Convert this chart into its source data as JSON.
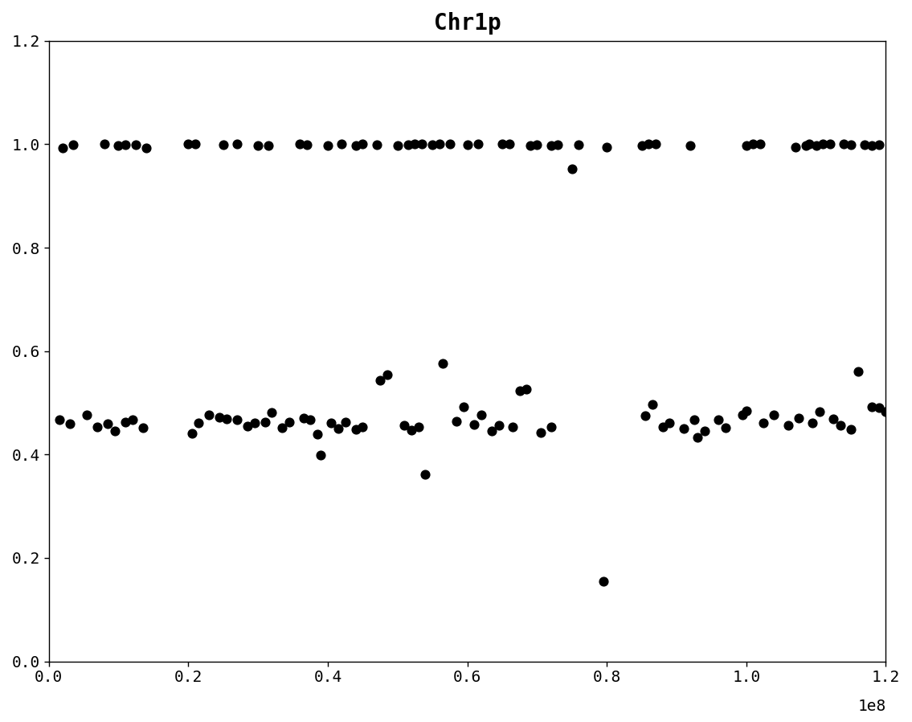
{
  "title": "Chr1p",
  "xlim": [
    0,
    120000000.0
  ],
  "ylim": [
    0.0,
    1.2
  ],
  "yticks": [
    0.0,
    0.2,
    0.4,
    0.6,
    0.8,
    1.0,
    1.2
  ],
  "xtick_vals": [
    0,
    20000000.0,
    40000000.0,
    60000000.0,
    80000000.0,
    100000000.0,
    120000000.0
  ],
  "xtick_labels": [
    "0.0",
    "0.2",
    "0.4",
    "0.6",
    "0.8",
    "1.0",
    "1.2"
  ],
  "xlabel_sci": "1e8",
  "marker_color": "#000000",
  "marker_size": 60,
  "background_color": "#ffffff",
  "upper_cluster": [
    [
      2000000,
      0.993
    ],
    [
      3500000,
      0.999
    ],
    [
      8000000,
      1.0
    ],
    [
      10000000,
      0.997
    ],
    [
      11000000,
      0.999
    ],
    [
      12500000,
      0.999
    ],
    [
      14000000,
      0.993
    ],
    [
      20000000,
      1.001
    ],
    [
      21000000,
      1.0
    ],
    [
      25000000,
      0.999
    ],
    [
      27000000,
      1.0
    ],
    [
      30000000,
      0.998
    ],
    [
      31500000,
      0.998
    ],
    [
      36000000,
      1.001
    ],
    [
      37000000,
      0.999
    ],
    [
      40000000,
      0.997
    ],
    [
      42000000,
      1.0
    ],
    [
      44000000,
      0.998
    ],
    [
      45000000,
      1.0
    ],
    [
      47000000,
      0.999
    ],
    [
      50000000,
      0.998
    ],
    [
      51500000,
      0.999
    ],
    [
      52500000,
      1.0
    ],
    [
      53500000,
      1.0
    ],
    [
      55000000,
      0.999
    ],
    [
      56000000,
      1.001
    ],
    [
      57500000,
      1.0
    ],
    [
      60000000,
      0.999
    ],
    [
      61500000,
      1.001
    ],
    [
      65000000,
      1.001
    ],
    [
      66000000,
      1.001
    ],
    [
      69000000,
      0.998
    ],
    [
      70000000,
      0.999
    ],
    [
      72000000,
      0.997
    ],
    [
      73000000,
      0.999
    ],
    [
      75000000,
      0.952
    ],
    [
      76000000,
      0.999
    ],
    [
      80000000,
      0.994
    ],
    [
      85000000,
      0.997
    ],
    [
      86000000,
      1.0
    ],
    [
      87000000,
      1.001
    ],
    [
      92000000,
      0.997
    ],
    [
      100000000,
      0.998
    ],
    [
      101000000,
      1.001
    ],
    [
      102000000,
      1.001
    ],
    [
      107000000,
      0.994
    ],
    [
      108500000,
      0.998
    ],
    [
      109000000,
      1.0
    ],
    [
      110000000,
      0.998
    ],
    [
      111000000,
      1.001
    ],
    [
      112000000,
      1.0
    ],
    [
      114000000,
      1.0
    ],
    [
      115000000,
      0.999
    ],
    [
      117000000,
      0.999
    ],
    [
      118000000,
      0.998
    ],
    [
      119000000,
      0.999
    ]
  ],
  "lower_cluster": [
    [
      1500000,
      0.468
    ],
    [
      3000000,
      0.459
    ],
    [
      5500000,
      0.477
    ],
    [
      7000000,
      0.453
    ],
    [
      8500000,
      0.46
    ],
    [
      9500000,
      0.446
    ],
    [
      11000000,
      0.462
    ],
    [
      12000000,
      0.467
    ],
    [
      13500000,
      0.452
    ],
    [
      20500000,
      0.441
    ],
    [
      21500000,
      0.461
    ],
    [
      23000000,
      0.476
    ],
    [
      24500000,
      0.472
    ],
    [
      25500000,
      0.469
    ],
    [
      27000000,
      0.468
    ],
    [
      28500000,
      0.455
    ],
    [
      29500000,
      0.461
    ],
    [
      31000000,
      0.462
    ],
    [
      32000000,
      0.481
    ],
    [
      33500000,
      0.452
    ],
    [
      34500000,
      0.462
    ],
    [
      36500000,
      0.471
    ],
    [
      37500000,
      0.467
    ],
    [
      38500000,
      0.44
    ],
    [
      39000000,
      0.399
    ],
    [
      40500000,
      0.461
    ],
    [
      41500000,
      0.451
    ],
    [
      42500000,
      0.463
    ],
    [
      44000000,
      0.448
    ],
    [
      45000000,
      0.454
    ],
    [
      47500000,
      0.543
    ],
    [
      48500000,
      0.554
    ],
    [
      51000000,
      0.456
    ],
    [
      52000000,
      0.447
    ],
    [
      53000000,
      0.453
    ],
    [
      54000000,
      0.362
    ],
    [
      56500000,
      0.576
    ],
    [
      58500000,
      0.464
    ],
    [
      59500000,
      0.492
    ],
    [
      61000000,
      0.458
    ],
    [
      62000000,
      0.476
    ],
    [
      63500000,
      0.446
    ],
    [
      64500000,
      0.456
    ],
    [
      66500000,
      0.454
    ],
    [
      67500000,
      0.524
    ],
    [
      68500000,
      0.527
    ],
    [
      70500000,
      0.442
    ],
    [
      72000000,
      0.453
    ],
    [
      79500000,
      0.155
    ],
    [
      85500000,
      0.475
    ],
    [
      86500000,
      0.497
    ],
    [
      88000000,
      0.454
    ],
    [
      89000000,
      0.461
    ],
    [
      91000000,
      0.451
    ],
    [
      92500000,
      0.468
    ],
    [
      93000000,
      0.433
    ],
    [
      94000000,
      0.445
    ],
    [
      96000000,
      0.468
    ],
    [
      97000000,
      0.452
    ],
    [
      99500000,
      0.476
    ],
    [
      100000000,
      0.484
    ],
    [
      102500000,
      0.461
    ],
    [
      104000000,
      0.476
    ],
    [
      106000000,
      0.457
    ],
    [
      107500000,
      0.471
    ],
    [
      109500000,
      0.461
    ],
    [
      110500000,
      0.483
    ],
    [
      112500000,
      0.469
    ],
    [
      113500000,
      0.457
    ],
    [
      115000000,
      0.449
    ],
    [
      116000000,
      0.561
    ],
    [
      118000000,
      0.492
    ],
    [
      119000000,
      0.491
    ],
    [
      120000000,
      0.483
    ]
  ]
}
